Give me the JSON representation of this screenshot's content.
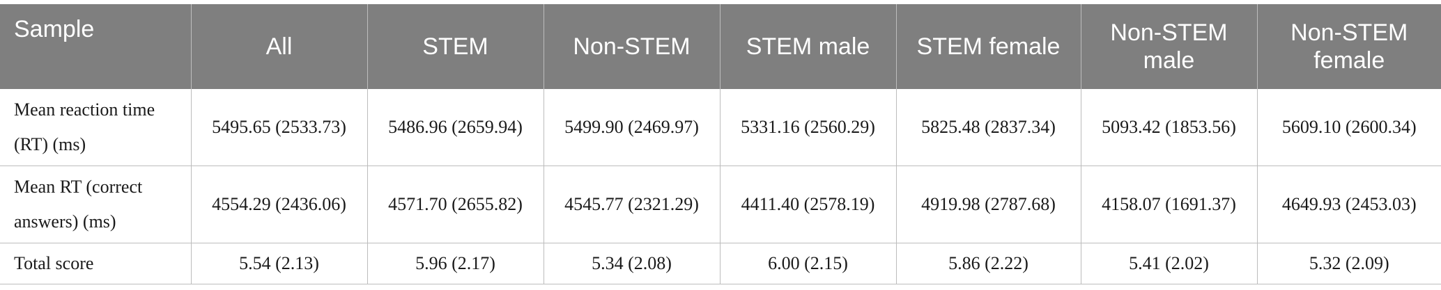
{
  "header": [
    "Sample",
    "All",
    "STEM",
    "Non-STEM",
    "STEM male",
    "STEM female",
    "Non-STEM male",
    "Non-STEM female"
  ],
  "rows": [
    {
      "label": "Mean reaction time (RT) (ms)",
      "values": [
        "5495.65 (2533.73)",
        "5486.96 (2659.94)",
        "5499.90 (2469.97)",
        "5331.16 (2560.29)",
        "5825.48 (2837.34)",
        "5093.42 (1853.56)",
        "5609.10 (2600.34)"
      ]
    },
    {
      "label": "Mean RT (correct answers) (ms)",
      "values": [
        "4554.29 (2436.06)",
        "4571.70 (2655.82)",
        "4545.77 (2321.29)",
        "4411.40 (2578.19)",
        "4919.98 (2787.68)",
        "4158.07 (1691.37)",
        "4649.93 (2453.03)"
      ]
    },
    {
      "label": "Total score",
      "values": [
        "5.54 (2.13)",
        "5.96 (2.17)",
        "5.34 (2.08)",
        "6.00 (2.15)",
        "5.86 (2.22)",
        "5.41 (2.02)",
        "5.32 (2.09)"
      ]
    }
  ],
  "colors": {
    "header_bg": "#7f7f7f",
    "header_text": "#ffffff",
    "grid": "#bcbcbc"
  }
}
